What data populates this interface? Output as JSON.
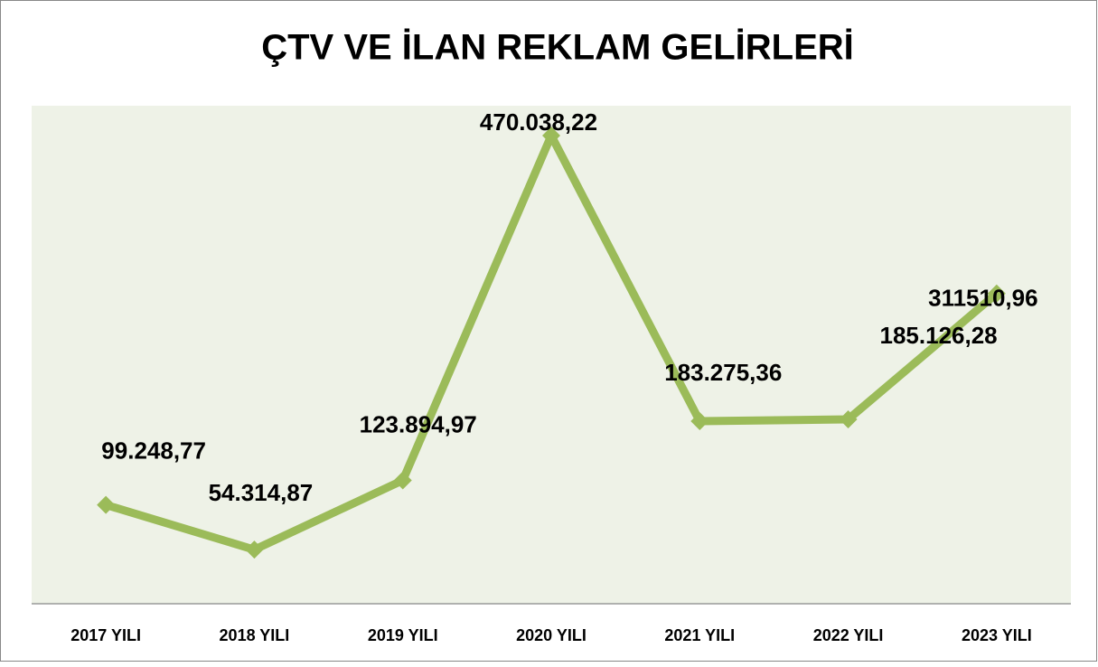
{
  "chart_data": {
    "type": "line",
    "title": "ÇTV VE İLAN REKLAM GELİRLERİ",
    "categories": [
      "2017 YILI",
      "2018 YILI",
      "2019 YILI",
      "2020 YILI",
      "2021 YILI",
      "2022 YILI",
      "2023 YILI"
    ],
    "series": [
      {
        "color": "#9bbb59",
        "values": [
          99248.77,
          54314.87,
          123894.97,
          470038.22,
          183275.36,
          185126.28,
          311510.96
        ],
        "value_labels": [
          "99.248,77",
          "54.314,87",
          "123.894,97",
          "470.038,22",
          "183.275,36",
          "185.126,28",
          "311510,96"
        ]
      }
    ],
    "ylim": [
      0,
      500000
    ]
  }
}
